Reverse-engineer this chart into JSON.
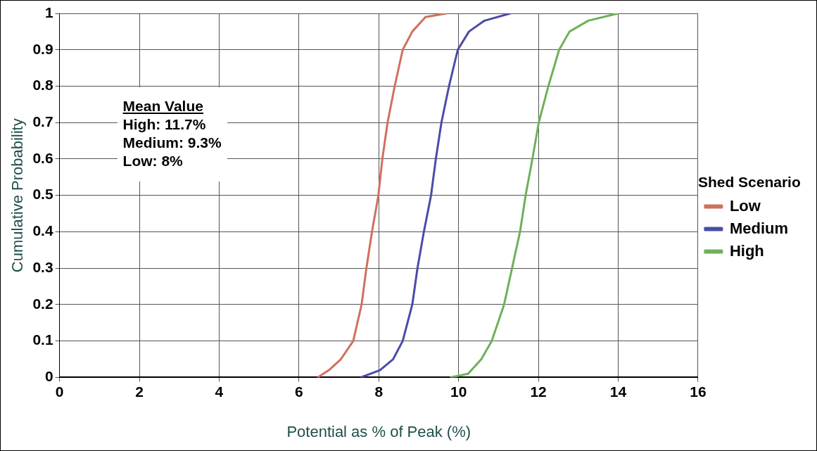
{
  "chart_data": {
    "type": "line",
    "xlabel": "Potential as % of Peak (%)",
    "ylabel": "Cumulative Probability",
    "legend_title": "Shed Scenario",
    "legend": "right",
    "grid": true,
    "marker": "none",
    "line_style": "solid",
    "xlim": [
      0,
      16
    ],
    "xticks": [
      0,
      2,
      4,
      6,
      8,
      10,
      12,
      14,
      16
    ],
    "ylim": [
      0,
      1
    ],
    "yticks": [
      0,
      0.1,
      0.2,
      0.3,
      0.4,
      0.5,
      0.6,
      0.7,
      0.8,
      0.9,
      1
    ],
    "annotations": [
      "Mean Value",
      "High: 11.7%",
      "Medium: 9.3%",
      "Low: 8%"
    ],
    "series": [
      {
        "name": "Low",
        "color": "#d0705f",
        "x": [
          6.47,
          6.75,
          7.05,
          7.36,
          7.57,
          7.69,
          7.83,
          7.99,
          8.09,
          8.22,
          8.4,
          8.6,
          8.84,
          9.17,
          9.7
        ],
        "values": [
          0,
          0.02,
          0.05,
          0.1,
          0.2,
          0.3,
          0.4,
          0.5,
          0.6,
          0.7,
          0.8,
          0.9,
          0.95,
          0.99,
          1
        ]
      },
      {
        "name": "Medium",
        "color": "#4b4ba8",
        "x": [
          7.55,
          8.03,
          8.36,
          8.6,
          8.84,
          8.97,
          9.13,
          9.31,
          9.43,
          9.57,
          9.76,
          9.98,
          10.26,
          10.65,
          11.3
        ],
        "values": [
          0,
          0.02,
          0.05,
          0.1,
          0.2,
          0.3,
          0.4,
          0.5,
          0.6,
          0.7,
          0.8,
          0.9,
          0.95,
          0.98,
          1
        ]
      },
      {
        "name": "High",
        "color": "#6fb05a",
        "x": [
          9.79,
          10.24,
          10.57,
          10.83,
          11.14,
          11.34,
          11.54,
          11.68,
          11.85,
          12.01,
          12.25,
          12.52,
          12.78,
          13.25,
          14
        ],
        "values": [
          0,
          0.01,
          0.05,
          0.1,
          0.2,
          0.3,
          0.4,
          0.5,
          0.6,
          0.7,
          0.8,
          0.9,
          0.95,
          0.98,
          1
        ]
      }
    ]
  }
}
